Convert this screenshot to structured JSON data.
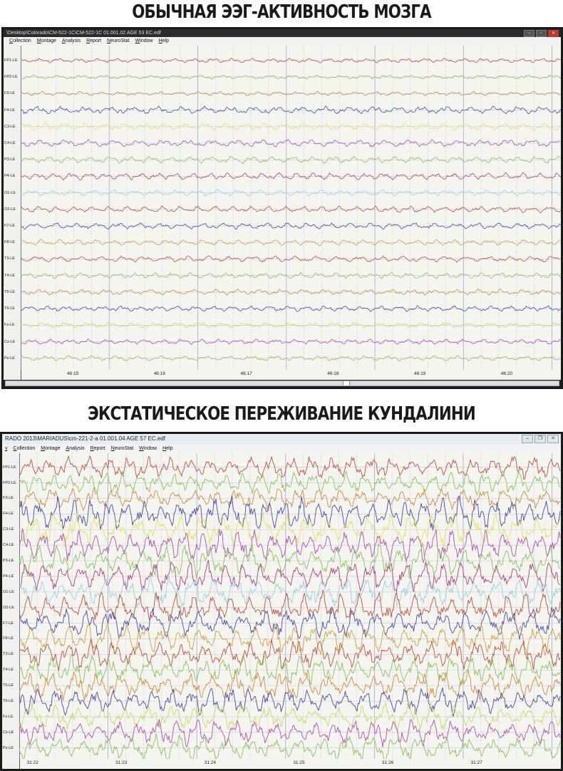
{
  "captions": {
    "top": "ОБЫЧНАЯ ЭЭГ-АКТИВНОСТЬ МОЗГА",
    "bottom": "ЭКСТАТИЧЕСКОЕ ПЕРЕЖИВАНИЕ КУНДАЛИНИ"
  },
  "windows": [
    {
      "title": "\\Desktop\\Colorado\\CM-522-1C\\CM-522-1C 01.001.02 AGE 53  EC.edf",
      "menu": [
        "Collection",
        "Montage",
        "Analysis",
        "Report",
        "NeuroStat",
        "Window",
        "Help"
      ],
      "window_buttons": [
        "minimize",
        "maximize",
        "close"
      ],
      "channels": [
        "FP1-LE",
        "FP2-LE",
        "F3-LE",
        "F4-LE",
        "C3-LE",
        "C4-LE",
        "P3-LE",
        "P4-LE",
        "O1-LE",
        "O2-LE",
        "F7-LE",
        "F8-LE",
        "T3-LE",
        "T4-LE",
        "T5-LE",
        "T6-LE",
        "Fz-LE",
        "Cz-LE",
        "Pz-LE"
      ],
      "time_ticks": [
        "46:15",
        "46:16",
        "46:17",
        "46:18",
        "46:19",
        "46:20"
      ],
      "amplitude": 4,
      "scrollbar_thumb_pct": 61
    },
    {
      "title": "RADO 2013\\MARIADUS\\cm-221-2-a 01.001.04 AGE 57  EC.edf",
      "menu_prefix": "v",
      "menu": [
        "Collection",
        "Montage",
        "Analysis",
        "Report",
        "NeuroStat",
        "Window",
        "Help"
      ],
      "window_buttons": [
        "minimize",
        "restore",
        "close"
      ],
      "channels": [
        "FP1-LE",
        "FP2-LE",
        "F3-LE",
        "F4-LE",
        "C3-LE",
        "C4-LE",
        "P3-LE",
        "P4-LE",
        "O1-LE",
        "O2-LE",
        "F7-LE",
        "F8-LE",
        "T3-LE",
        "T4-LE",
        "T5-LE",
        "T6-LE",
        "Fz-LE",
        "Cz-LE",
        "Pz-LE"
      ],
      "time_ticks": [
        "31:22",
        "31:23",
        "31:24",
        "31:25",
        "31:26",
        "31:27"
      ],
      "amplitude": 16
    }
  ],
  "channel_colors": [
    "#c0503a",
    "#8cbf5a",
    "#d08a40",
    "#4a4aa8",
    "#e0e060",
    "#b050b0",
    "#8cbf5a",
    "#b0407a",
    "#9ad0e0",
    "#c0503a",
    "#4a4aa8",
    "#d0a040",
    "#c0503a",
    "#8cbf5a",
    "#d08a40",
    "#4a4aa8",
    "#c8d860",
    "#b050b0",
    "#8cbf5a"
  ],
  "grid": {
    "major": "#a8a8d0",
    "minor": "#b8b8e0",
    "baseline": "#c8c8d8"
  }
}
